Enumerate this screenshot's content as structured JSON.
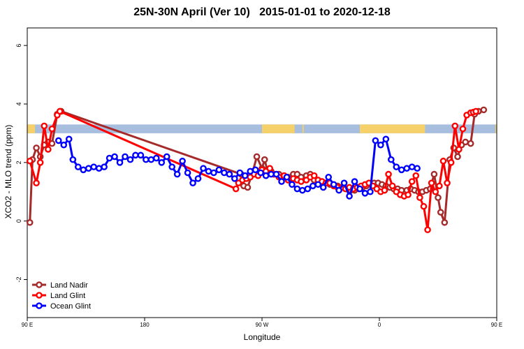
{
  "chart_data": {
    "type": "line",
    "title": "25N-30N April (Ver 10)   2015-01-01 to 2020-12-18",
    "xlabel": "Longitude",
    "ylabel": "XCO2 - MLO trend (ppm)",
    "xlim": [
      90,
      450
    ],
    "ylim": [
      -3.3,
      6.6
    ],
    "x_ticks": [
      {
        "value": 90,
        "label": "90 E"
      },
      {
        "value": 180,
        "label": "180"
      },
      {
        "value": 270,
        "label": "90 W"
      },
      {
        "value": 360,
        "label": "0"
      },
      {
        "value": 450,
        "label": "90 E"
      },
      {
        "value": 540,
        "label": "180"
      }
    ],
    "y_ticks": [
      {
        "value": -2,
        "label": "-2"
      },
      {
        "value": 0,
        "label": "0"
      },
      {
        "value": 2,
        "label": "2"
      },
      {
        "value": 4,
        "label": "4"
      },
      {
        "value": 6,
        "label": "6"
      }
    ],
    "grid": false,
    "legend_position": "bottom-left",
    "colors": {
      "land_nadir": "#a52a2a",
      "land_glint": "#ff0000",
      "ocean_glint": "#0000ff",
      "map_land": "#f5d06b",
      "map_ocean": "#a7bedf"
    },
    "series": [
      {
        "name": "Land Nadir",
        "color": "#a52a2a",
        "x": [
          92,
          94,
          97,
          100,
          103,
          106,
          109,
          113,
          116,
          254,
          256,
          259,
          263,
          266,
          270,
          272,
          274,
          277,
          279,
          283,
          287,
          290,
          294,
          297,
          300,
          304,
          307,
          310,
          313,
          316,
          319,
          322,
          325,
          328,
          332,
          335,
          338,
          341,
          344,
          347,
          350,
          353,
          356,
          359,
          362,
          365,
          368,
          371,
          374,
          377,
          381,
          384,
          387,
          390,
          393,
          396,
          399,
          402,
          405,
          407,
          410,
          414,
          417,
          420,
          423,
          426,
          430,
          433,
          436,
          440
        ],
        "y": [
          -0.05,
          2.1,
          2.5,
          2.2,
          2.6,
          2.7,
          2.65,
          3.65,
          3.75,
          1.6,
          1.2,
          1.15,
          1.7,
          2.2,
          1.8,
          2.1,
          1.75,
          1.7,
          1.6,
          1.6,
          1.55,
          1.5,
          1.6,
          1.6,
          1.5,
          1.55,
          1.6,
          1.4,
          1.3,
          1.35,
          1.3,
          1.25,
          1.2,
          1.2,
          1.15,
          1.1,
          1.05,
          1.05,
          1.1,
          1.15,
          1.2,
          1.25,
          1.3,
          1.3,
          1.25,
          1.2,
          1.15,
          1.1,
          1.1,
          1.05,
          1.05,
          1.1,
          1.05,
          1.0,
          1.0,
          1.05,
          1.1,
          1.6,
          0.8,
          0.3,
          -0.05,
          2.1,
          2.5,
          2.2,
          2.6,
          2.7,
          2.65,
          3.65,
          3.75,
          3.8
        ]
      },
      {
        "name": "Land Glint",
        "color": "#ff0000",
        "x": [
          92,
          97,
          100,
          103,
          106,
          109,
          113,
          115,
          250,
          252,
          255,
          258,
          261,
          264,
          267,
          270,
          273,
          276,
          279,
          283,
          287,
          290,
          294,
          297,
          300,
          304,
          307,
          310,
          313,
          316,
          319,
          322,
          325,
          328,
          331,
          334,
          337,
          340,
          343,
          346,
          349,
          352,
          355,
          358,
          361,
          364,
          367,
          370,
          373,
          376,
          379,
          382,
          385,
          388,
          391,
          394,
          397,
          400,
          403,
          406,
          409,
          412,
          415,
          418,
          421,
          424,
          427,
          430,
          432,
          434
        ],
        "y": [
          2.05,
          1.3,
          2.0,
          3.25,
          2.45,
          3.15,
          3.62,
          3.75,
          1.1,
          1.3,
          1.4,
          1.45,
          1.5,
          1.6,
          1.55,
          1.75,
          1.7,
          1.8,
          1.6,
          1.5,
          1.55,
          1.4,
          1.45,
          1.4,
          1.35,
          1.4,
          1.5,
          1.55,
          1.4,
          1.35,
          1.3,
          1.3,
          1.2,
          1.15,
          1.15,
          1.1,
          1.15,
          1.1,
          1.15,
          1.2,
          1.25,
          1.3,
          1.2,
          1.1,
          1.0,
          1.05,
          1.6,
          1.2,
          1.0,
          0.9,
          0.85,
          0.9,
          1.35,
          1.55,
          0.8,
          0.5,
          -0.3,
          1.3,
          1.0,
          1.2,
          2.05,
          1.3,
          2.0,
          3.25,
          2.45,
          3.15,
          3.62,
          3.7,
          3.72,
          3.75
        ]
      },
      {
        "name": "Ocean Glint",
        "color": "#0000ff",
        "x": [
          114,
          118,
          122,
          125,
          129,
          133,
          137,
          141,
          145,
          149,
          153,
          157,
          161,
          165,
          169,
          173,
          177,
          181,
          185,
          189,
          193,
          197,
          201,
          205,
          209,
          213,
          217,
          221,
          225,
          229,
          233,
          237,
          241,
          245,
          249,
          253,
          257,
          261,
          265,
          269,
          273,
          277,
          281,
          285,
          289,
          293,
          297,
          301,
          305,
          309,
          313,
          317,
          321,
          325,
          329,
          333,
          337,
          341,
          345,
          349,
          353,
          357,
          361,
          365,
          369,
          373,
          377,
          381,
          385,
          389
        ],
        "y": [
          2.75,
          2.6,
          2.8,
          2.1,
          1.85,
          1.75,
          1.8,
          1.85,
          1.8,
          1.85,
          2.15,
          2.2,
          2.0,
          2.2,
          2.1,
          2.25,
          2.25,
          2.1,
          2.1,
          2.15,
          2.0,
          2.2,
          1.85,
          1.6,
          2.05,
          1.65,
          1.3,
          1.45,
          1.8,
          1.7,
          1.65,
          1.75,
          1.65,
          1.6,
          1.45,
          1.65,
          1.55,
          1.7,
          1.75,
          1.65,
          1.55,
          1.6,
          1.6,
          1.35,
          1.5,
          1.25,
          1.1,
          1.05,
          1.1,
          1.2,
          1.25,
          1.15,
          1.5,
          1.25,
          1.05,
          1.3,
          0.85,
          1.35,
          1.1,
          0.95,
          1.0,
          2.75,
          2.6,
          2.8,
          2.1,
          1.85,
          1.75,
          1.8,
          1.85,
          1.8
        ]
      }
    ]
  }
}
